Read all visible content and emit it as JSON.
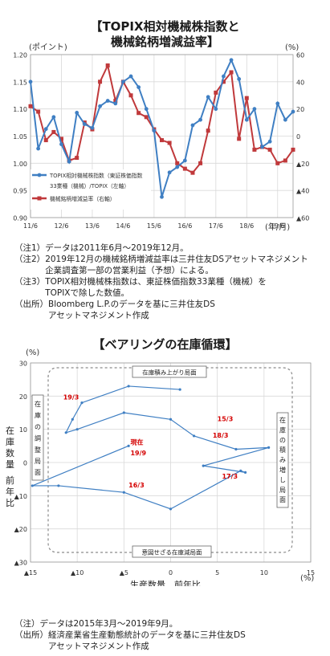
{
  "chart1": {
    "title_line1": "【TOPIX相対機械株指数と",
    "title_line2": "機械銘柄増減益率】",
    "left_unit": "(ポイント)",
    "right_unit": "(%)",
    "x_unit": "(年/月)",
    "legend": [
      "TOPIX相対機械株指数（東証株価指数",
      "33業種（機械）/TOPIX（左軸）",
      "機械銘柄増減益率（右軸）"
    ]
  },
  "chart2": {
    "title": "【ベアリングの在庫循環】",
    "y_unit": "(%)",
    "x_unit": "(%)",
    "ylabel_chars": [
      "在",
      "庫",
      "数",
      "量"
    ],
    "ylabel_sub": [
      "前",
      "年",
      "比"
    ],
    "xlabel": "生産数量　前年比",
    "region_labels": {
      "top": "在庫積み上がり局面",
      "right": [
        "在",
        "庫",
        "の",
        "積",
        "み",
        "増",
        "し",
        "局",
        "面"
      ],
      "bottom": "意図せざる在庫減局面",
      "left": [
        "在",
        "庫",
        "の",
        "調",
        "整",
        "局",
        "面"
      ]
    },
    "point_labels": [
      "19/3",
      "15/3",
      "18/3",
      "現在",
      "19/9",
      "17/3",
      "16/3"
    ]
  },
  "notes1": [
    {
      "label": "（注1）",
      "lines": [
        "データは2011年6月～2019年12月。"
      ]
    },
    {
      "label": "（注2）",
      "lines": [
        "2019年12月の機械銘柄増減益率は三井住友DSアセットマネジメント",
        "企業調査第一部の営業利益（予想）による。"
      ]
    },
    {
      "label": "（注3）",
      "lines": [
        "TOPIX相対機械株指数は、東証株価指数33業種（機械）を",
        "TOPIXで除した数値。"
      ]
    },
    {
      "label": "（出所）",
      "lines": [
        "Bloomberg L.P.のデータを基に三井住友DS",
        "アセットマネジメント作成"
      ]
    }
  ],
  "notes2": [
    {
      "label": "（注）",
      "lines": [
        "データは2015年3月～2019年9月。"
      ]
    },
    {
      "label": "（出所）",
      "lines": [
        "経済産業省生産動態統計のデータを基に三井住友DS",
        "アセットマネジメント作成"
      ]
    }
  ],
  "colors": {
    "blue": "#3f7fc3",
    "red": "#c0393b",
    "grid": "#d9d9d9",
    "label_red": "#d40000"
  },
  "chart_data": [
    {
      "type": "line",
      "title": "TOPIX相対機械株指数と機械銘柄増減益率",
      "x_ticks": [
        "11/6",
        "12/6",
        "13/6",
        "14/6",
        "15/6",
        "16/6",
        "17/6",
        "18/6",
        "19/6"
      ],
      "x_range": [
        0,
        102
      ],
      "left_axis": {
        "ticks": [
          "0.90",
          "0.95",
          "1.00",
          "1.05",
          "1.10",
          "1.15",
          "1.20"
        ],
        "range": [
          0.9,
          1.2
        ]
      },
      "right_axis": {
        "ticks": [
          "▲60",
          "▲40",
          "▲20",
          "0",
          "20",
          "40",
          "60"
        ],
        "range": [
          -60,
          60
        ]
      },
      "series": [
        {
          "name": "TOPIX相対機械株指数（東証株価指数33業種（機械）/TOPIX（左軸）",
          "axis": "left",
          "x": [
            0,
            3,
            6,
            9,
            12,
            15,
            18,
            21,
            24,
            27,
            30,
            33,
            36,
            39,
            42,
            45,
            48,
            51,
            54,
            57,
            60,
            63,
            66,
            69,
            72,
            75,
            78,
            81,
            84,
            87,
            90,
            93,
            96,
            99,
            102
          ],
          "y": [
            1.15,
            1.027,
            1.063,
            1.085,
            1.035,
            1.003,
            1.093,
            1.072,
            1.065,
            1.105,
            1.115,
            1.11,
            1.15,
            1.16,
            1.14,
            1.1,
            1.06,
            0.938,
            0.983,
            0.993,
            1.005,
            1.07,
            1.08,
            1.122,
            1.1,
            1.16,
            1.19,
            1.155,
            1.08,
            1.1,
            1.03,
            1.04,
            1.11,
            1.08,
            1.095
          ]
        },
        {
          "name": "機械銘柄増減益率（右軸）",
          "axis": "right",
          "x": [
            0,
            3,
            6,
            9,
            12,
            15,
            18,
            21,
            24,
            27,
            30,
            33,
            36,
            39,
            42,
            45,
            48,
            51,
            54,
            57,
            60,
            63,
            66,
            69,
            72,
            75,
            78,
            81,
            84,
            87,
            90,
            93,
            96,
            99,
            102
          ],
          "y": [
            22,
            18,
            -3,
            3,
            -2,
            -18,
            -16,
            10,
            5,
            40,
            52,
            26,
            40,
            30,
            17,
            14,
            5,
            -3,
            -5,
            -20,
            -24,
            -27,
            -20,
            4,
            32,
            40,
            47,
            -2,
            28,
            -10,
            -8,
            -10,
            -20,
            -18,
            -10
          ]
        }
      ]
    },
    {
      "type": "scatter",
      "title": "ベアリングの在庫循環",
      "xlabel": "生産数量　前年比",
      "ylabel": "在庫数量　前年比",
      "x_ticks": [
        "▲15",
        "▲10",
        "▲5",
        "0",
        "5",
        "10",
        "15"
      ],
      "y_ticks": [
        "30",
        "20",
        "10",
        "0",
        "▲10",
        "▲20",
        "▲30"
      ],
      "x_range": [
        -15,
        15
      ],
      "y_range": [
        -30,
        30
      ],
      "series": [
        {
          "name": "",
          "x": [
            1.0,
            -4.5,
            -9.5,
            -10.5,
            -11.2,
            -10.0,
            -5.0,
            0.0,
            2.5,
            7.0,
            10.5,
            3.5,
            8.0,
            7.5,
            0.0,
            -5.0,
            -12.0,
            -14.8,
            -4.5
          ],
          "y": [
            22.0,
            23.0,
            18.0,
            13.0,
            9.0,
            10.0,
            15.0,
            13.0,
            8.0,
            4.0,
            4.5,
            -1.0,
            -3.0,
            -2.5,
            -14.0,
            -9.0,
            -7.0,
            -7.0,
            5.0
          ]
        }
      ],
      "labels": [
        {
          "text": "15/3",
          "x": 5.0,
          "y": 12.5
        },
        {
          "text": "16/3",
          "x": -4.5,
          "y": -7.5
        },
        {
          "text": "17/3",
          "x": 5.5,
          "y": -4.8
        },
        {
          "text": "18/3",
          "x": 4.5,
          "y": 7.5
        },
        {
          "text": "19/3",
          "x": -11.5,
          "y": 19.0
        },
        {
          "text": "現在",
          "x": -4.3,
          "y": 5.5
        },
        {
          "text": "19/9",
          "x": -4.3,
          "y": 2.2
        }
      ]
    }
  ]
}
